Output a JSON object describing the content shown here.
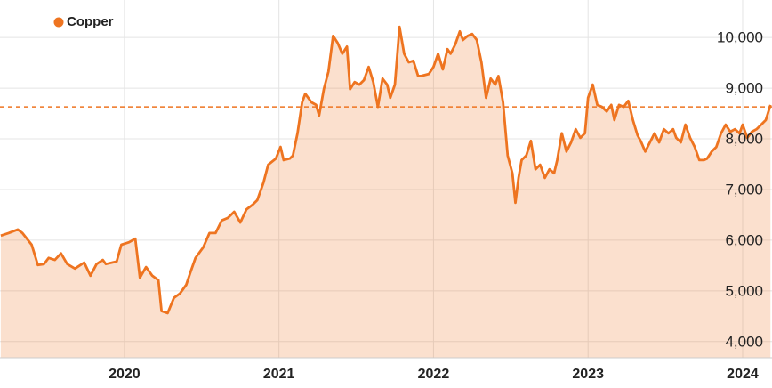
{
  "chart_data": {
    "type": "area",
    "series": [
      {
        "name": "Copper",
        "color": "#ee7420",
        "x": [
          2019.2,
          2019.25,
          2019.31,
          2019.34,
          2019.4,
          2019.44,
          2019.48,
          2019.51,
          2019.55,
          2019.59,
          2019.63,
          2019.68,
          2019.74,
          2019.78,
          2019.82,
          2019.86,
          2019.88,
          2019.95,
          2019.98,
          2020.03,
          2020.07,
          2020.1,
          2020.14,
          2020.18,
          2020.22,
          2020.24,
          2020.28,
          2020.32,
          2020.36,
          2020.4,
          2020.43,
          2020.46,
          2020.51,
          2020.55,
          2020.59,
          2020.63,
          2020.67,
          2020.71,
          2020.75,
          2020.79,
          2020.83,
          2020.86,
          2020.9,
          2020.93,
          2020.98,
          2021.01,
          2021.03,
          2021.07,
          2021.09,
          2021.12,
          2021.15,
          2021.17,
          2021.21,
          2021.24,
          2021.26,
          2021.29,
          2021.32,
          2021.35,
          2021.38,
          2021.41,
          2021.44,
          2021.46,
          2021.49,
          2021.52,
          2021.55,
          2021.58,
          2021.61,
          2021.64,
          2021.67,
          2021.7,
          2021.72,
          2021.75,
          2021.78,
          2021.81,
          2021.84,
          2021.87,
          2021.9,
          2021.92,
          2021.97,
          2022.0,
          2022.03,
          2022.06,
          2022.09,
          2022.11,
          2022.14,
          2022.17,
          2022.19,
          2022.22,
          2022.25,
          2022.28,
          2022.31,
          2022.34,
          2022.37,
          2022.4,
          2022.42,
          2022.45,
          2022.48,
          2022.51,
          2022.53,
          2022.55,
          2022.57,
          2022.6,
          2022.63,
          2022.66,
          2022.69,
          2022.72,
          2022.75,
          2022.78,
          2022.8,
          2022.83,
          2022.86,
          2022.89,
          2022.92,
          2022.95,
          2022.98,
          2023.0,
          2023.03,
          2023.06,
          2023.09,
          2023.12,
          2023.15,
          2023.17,
          2023.2,
          2023.23,
          2023.26,
          2023.29,
          2023.32,
          2023.34,
          2023.37,
          2023.4,
          2023.43,
          2023.46,
          2023.49,
          2023.52,
          2023.55,
          2023.57,
          2023.6,
          2023.63,
          2023.66,
          2023.69,
          2023.72,
          2023.75,
          2023.77,
          2023.8,
          2023.83,
          2023.86,
          2023.89,
          2023.92,
          2023.95,
          2023.98,
          2024.0,
          2024.03,
          2024.06,
          2024.09,
          2024.12,
          2024.15,
          2024.18
        ],
        "values": [
          6090,
          6140,
          6210,
          6140,
          5910,
          5510,
          5530,
          5650,
          5610,
          5740,
          5530,
          5440,
          5560,
          5300,
          5530,
          5610,
          5530,
          5580,
          5910,
          5960,
          6030,
          5260,
          5470,
          5300,
          5210,
          4600,
          4560,
          4860,
          4950,
          5120,
          5390,
          5650,
          5860,
          6140,
          6140,
          6390,
          6440,
          6560,
          6350,
          6610,
          6700,
          6790,
          7140,
          7490,
          7610,
          7840,
          7580,
          7610,
          7670,
          8110,
          8720,
          8890,
          8720,
          8670,
          8460,
          8980,
          9330,
          10030,
          9890,
          9680,
          9820,
          8980,
          9120,
          9070,
          9160,
          9420,
          9120,
          8630,
          9190,
          9070,
          8810,
          9070,
          10210,
          9680,
          9510,
          9540,
          9240,
          9240,
          9280,
          9420,
          9680,
          9370,
          9770,
          9680,
          9860,
          10120,
          9950,
          10030,
          10070,
          9950,
          9510,
          8810,
          9190,
          9070,
          9240,
          8720,
          7670,
          7320,
          6740,
          7230,
          7580,
          7670,
          7960,
          7400,
          7490,
          7230,
          7400,
          7320,
          7580,
          8110,
          7750,
          7930,
          8190,
          8020,
          8110,
          8810,
          9070,
          8670,
          8630,
          8540,
          8670,
          8370,
          8670,
          8630,
          8750,
          8370,
          8070,
          7960,
          7750,
          7930,
          8110,
          7930,
          8190,
          8110,
          8190,
          8020,
          7930,
          8280,
          8020,
          7840,
          7580,
          7580,
          7610,
          7750,
          7840,
          8110,
          8280,
          8140,
          8190,
          8110,
          8280,
          8020,
          8140,
          8190,
          8280,
          8370,
          8670
        ]
      }
    ],
    "reference_line": 8630,
    "xlim": [
      2019.195,
      2024.19
    ],
    "xticks": [
      2020,
      2021,
      2022,
      2023,
      2024
    ],
    "ylim": [
      3680,
      10740
    ],
    "yticks": [
      {
        "value": 4000,
        "label": "4,000"
      },
      {
        "value": 5000,
        "label": "5,000"
      },
      {
        "value": 6000,
        "label": "6,000"
      },
      {
        "value": 7000,
        "label": "7,000"
      },
      {
        "value": 8000,
        "label": "8,000"
      },
      {
        "value": 9000,
        "label": "9,000"
      },
      {
        "value": 10000,
        "label": "10,000"
      }
    ],
    "grid": true,
    "legend": "top-left"
  }
}
